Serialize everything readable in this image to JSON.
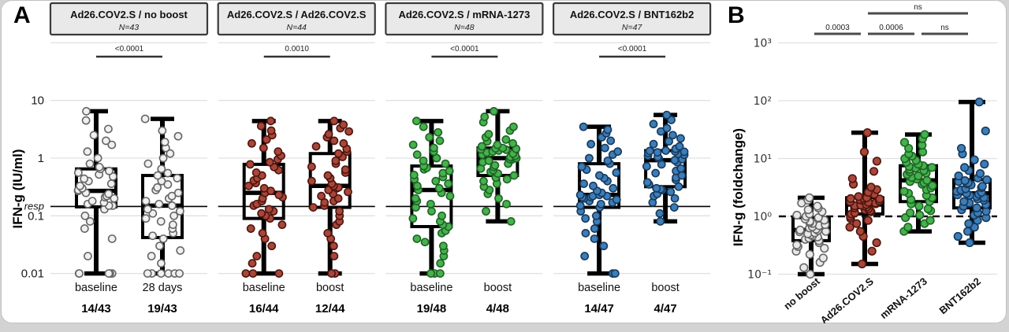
{
  "figure": {
    "panel_a_label": "A",
    "panel_b_label": "B"
  },
  "chart_data": [
    {
      "type": "boxplot-scatter",
      "panel": "A",
      "ylabel": "IFN-g (IU/ml)",
      "yscale": "log",
      "ylim": [
        0.01,
        10
      ],
      "yticks": [
        {
          "label": "10",
          "value": 10
        },
        {
          "label": "1",
          "value": 1
        },
        {
          "label": "0.1",
          "value": 0.1
        },
        {
          "label": "0.01",
          "value": 0.01
        }
      ],
      "gridline_values": [
        100,
        10,
        1,
        0.1,
        0.01
      ],
      "responder_threshold": {
        "label": "resp",
        "value": 0.145
      },
      "subpanels": [
        {
          "title": "Ad26.COV2.S / no boost",
          "n_label": "N=43",
          "p_value": "<0.0001",
          "groups": [
            {
              "label": "baseline",
              "fraction": "14/43",
              "point_fill": "#f0f0f0",
              "point_stroke": "#666666",
              "box": {
                "lo": 0.01,
                "q1": 0.143,
                "med": 0.27,
                "q3": 0.65,
                "hi": 6.5
              },
              "points": [
                0.01,
                0.01,
                0.01,
                0.01,
                0.01,
                0.02,
                0.04,
                0.06,
                0.08,
                0.1,
                0.13,
                0.15,
                0.15,
                0.16,
                0.17,
                0.18,
                0.2,
                0.21,
                0.22,
                0.24,
                0.25,
                0.27,
                0.28,
                0.3,
                0.33,
                0.36,
                0.4,
                0.44,
                0.48,
                0.52,
                0.56,
                0.6,
                0.65,
                0.7,
                0.8,
                1.0,
                1.3,
                1.7,
                2.0,
                2.5,
                3.2,
                4.5,
                6.5
              ]
            },
            {
              "label": "28 days",
              "fraction": "19/43",
              "point_fill": "#f0f0f0",
              "point_stroke": "#666666",
              "box": {
                "lo": 0.01,
                "q1": 0.042,
                "med": 0.15,
                "q3": 0.5,
                "hi": 4.8
              },
              "points": [
                0.01,
                0.01,
                0.01,
                0.01,
                0.01,
                0.01,
                0.015,
                0.02,
                0.025,
                0.03,
                0.04,
                0.045,
                0.05,
                0.06,
                0.07,
                0.08,
                0.09,
                0.1,
                0.11,
                0.12,
                0.13,
                0.15,
                0.16,
                0.18,
                0.2,
                0.22,
                0.25,
                0.28,
                0.31,
                0.35,
                0.4,
                0.45,
                0.5,
                0.55,
                0.65,
                0.8,
                1.0,
                1.2,
                1.5,
                1.9,
                2.4,
                3.0,
                4.8
              ]
            }
          ]
        },
        {
          "title": "Ad26.COV2.S / Ad26.COV2.S",
          "n_label": "N=44",
          "p_value": "0.0010",
          "groups": [
            {
              "label": "baseline",
              "fraction": "16/44",
              "point_fill": "#a8463a",
              "point_stroke": "#4e150e",
              "box": {
                "lo": 0.01,
                "q1": 0.09,
                "med": 0.25,
                "q3": 0.78,
                "hi": 4.4
              },
              "points": [
                0.01,
                0.01,
                0.01,
                0.015,
                0.02,
                0.03,
                0.04,
                0.05,
                0.06,
                0.07,
                0.09,
                0.1,
                0.11,
                0.12,
                0.13,
                0.15,
                0.16,
                0.18,
                0.2,
                0.21,
                0.23,
                0.25,
                0.27,
                0.3,
                0.33,
                0.37,
                0.41,
                0.45,
                0.5,
                0.56,
                0.62,
                0.7,
                0.78,
                0.85,
                0.95,
                1.1,
                1.3,
                1.5,
                1.8,
                2.1,
                2.5,
                3.0,
                3.6,
                4.4
              ]
            },
            {
              "label": "boost",
              "fraction": "12/44",
              "point_fill": "#a8463a",
              "point_stroke": "#4e150e",
              "box": {
                "lo": 0.01,
                "q1": 0.14,
                "med": 0.33,
                "q3": 1.2,
                "hi": 4.4
              },
              "points": [
                0.01,
                0.01,
                0.02,
                0.03,
                0.04,
                0.05,
                0.07,
                0.08,
                0.1,
                0.12,
                0.14,
                0.15,
                0.17,
                0.18,
                0.2,
                0.22,
                0.24,
                0.26,
                0.28,
                0.3,
                0.31,
                0.33,
                0.36,
                0.4,
                0.45,
                0.5,
                0.56,
                0.63,
                0.71,
                0.8,
                0.9,
                1.05,
                1.2,
                1.3,
                1.45,
                1.6,
                1.8,
                2.0,
                2.3,
                2.6,
                2.9,
                3.3,
                3.8,
                4.4
              ]
            }
          ]
        },
        {
          "title": "Ad26.COV2.S / mRNA-1273",
          "n_label": "N=48",
          "p_value": "<0.0001",
          "groups": [
            {
              "label": "baseline",
              "fraction": "19/48",
              "point_fill": "#46b14d",
              "point_stroke": "#1d6424",
              "box": {
                "lo": 0.01,
                "q1": 0.065,
                "med": 0.28,
                "q3": 0.73,
                "hi": 4.4
              },
              "points": [
                0.01,
                0.01,
                0.01,
                0.015,
                0.02,
                0.025,
                0.03,
                0.035,
                0.04,
                0.05,
                0.055,
                0.065,
                0.07,
                0.08,
                0.09,
                0.1,
                0.12,
                0.14,
                0.16,
                0.18,
                0.2,
                0.22,
                0.25,
                0.28,
                0.3,
                0.33,
                0.36,
                0.4,
                0.43,
                0.47,
                0.51,
                0.55,
                0.6,
                0.64,
                0.68,
                0.73,
                0.8,
                0.9,
                1.0,
                1.15,
                1.3,
                1.5,
                1.7,
                2.0,
                2.3,
                2.8,
                3.5,
                4.4
              ]
            },
            {
              "label": "boost",
              "fraction": "4/48",
              "point_fill": "#46b14d",
              "point_stroke": "#1d6424",
              "box": {
                "lo": 0.08,
                "q1": 0.5,
                "med": 1.0,
                "q3": 1.5,
                "hi": 6.5
              },
              "points": [
                0.08,
                0.12,
                0.16,
                0.2,
                0.24,
                0.28,
                0.32,
                0.36,
                0.4,
                0.43,
                0.46,
                0.5,
                0.54,
                0.58,
                0.62,
                0.66,
                0.7,
                0.75,
                0.8,
                0.85,
                0.9,
                0.94,
                0.97,
                1.0,
                1.05,
                1.1,
                1.15,
                1.2,
                1.25,
                1.3,
                1.35,
                1.4,
                1.42,
                1.45,
                1.48,
                1.5,
                1.6,
                1.7,
                1.8,
                1.95,
                2.1,
                2.3,
                2.6,
                3.0,
                3.5,
                4.2,
                5.2,
                6.5
              ]
            }
          ]
        },
        {
          "title": "Ad26.COV2.S / BNT162b2",
          "n_label": "N=47",
          "p_value": "<0.0001",
          "groups": [
            {
              "label": "baseline",
              "fraction": "14/47",
              "point_fill": "#3d7db8",
              "point_stroke": "#16395c",
              "box": {
                "lo": 0.01,
                "q1": 0.14,
                "med": 0.23,
                "q3": 0.8,
                "hi": 3.5
              },
              "points": [
                0.01,
                0.01,
                0.02,
                0.03,
                0.04,
                0.05,
                0.06,
                0.08,
                0.09,
                0.1,
                0.12,
                0.14,
                0.15,
                0.16,
                0.17,
                0.18,
                0.19,
                0.2,
                0.21,
                0.21,
                0.22,
                0.22,
                0.23,
                0.23,
                0.25,
                0.27,
                0.3,
                0.33,
                0.36,
                0.4,
                0.45,
                0.5,
                0.56,
                0.63,
                0.71,
                0.8,
                0.9,
                1.0,
                1.15,
                1.3,
                1.5,
                1.75,
                2.0,
                2.3,
                2.7,
                3.1,
                3.5
              ]
            },
            {
              "label": "boost",
              "fraction": "4/47",
              "point_fill": "#3d7db8",
              "point_stroke": "#16395c",
              "box": {
                "lo": 0.08,
                "q1": 0.32,
                "med": 0.92,
                "q3": 1.35,
                "hi": 5.6
              },
              "points": [
                0.08,
                0.11,
                0.14,
                0.17,
                0.2,
                0.22,
                0.24,
                0.26,
                0.28,
                0.29,
                0.3,
                0.32,
                0.35,
                0.38,
                0.42,
                0.46,
                0.5,
                0.55,
                0.6,
                0.66,
                0.72,
                0.78,
                0.85,
                0.92,
                0.96,
                1.0,
                1.05,
                1.1,
                1.14,
                1.18,
                1.22,
                1.26,
                1.29,
                1.31,
                1.33,
                1.35,
                1.45,
                1.6,
                1.75,
                1.95,
                2.2,
                2.5,
                2.9,
                3.3,
                3.9,
                4.6,
                5.6
              ]
            }
          ]
        }
      ]
    },
    {
      "type": "boxplot-scatter",
      "panel": "B",
      "ylabel": "IFN-g (foldchange)",
      "yscale": "log",
      "ylim": [
        0.1,
        1000
      ],
      "yticks": [
        {
          "label": "10³",
          "value": 1000
        },
        {
          "label": "10²",
          "value": 100
        },
        {
          "label": "10¹",
          "value": 10
        },
        {
          "label": "10⁰",
          "value": 1
        },
        {
          "label": "10⁻¹",
          "value": 0.1
        }
      ],
      "baseline_line": {
        "value": 1,
        "style": "dashed"
      },
      "comparisons": [
        {
          "label": "ns",
          "from": 1,
          "to": 3,
          "row": 0
        },
        {
          "label": "0.0003",
          "from": 0,
          "to": 1,
          "row": 1
        },
        {
          "label": "0.0006",
          "from": 1,
          "to": 2,
          "row": 1
        },
        {
          "label": "ns",
          "from": 2,
          "to": 3,
          "row": 1
        }
      ],
      "groups": [
        {
          "label": "no boost",
          "point_fill": "#e9e9e9",
          "point_stroke": "#666666",
          "box": {
            "lo": 0.1,
            "q1": 0.38,
            "med": 0.58,
            "q3": 0.95,
            "hi": 2.1
          },
          "points": [
            0.1,
            0.13,
            0.16,
            0.19,
            0.22,
            0.25,
            0.28,
            0.3,
            0.32,
            0.35,
            0.38,
            0.4,
            0.42,
            0.44,
            0.46,
            0.48,
            0.5,
            0.52,
            0.54,
            0.55,
            0.57,
            0.58,
            0.6,
            0.63,
            0.66,
            0.69,
            0.72,
            0.75,
            0.78,
            0.82,
            0.86,
            0.9,
            0.95,
            1.0,
            1.05,
            1.1,
            1.2,
            1.3,
            1.4,
            1.5,
            1.7,
            1.9,
            2.1
          ]
        },
        {
          "label": "Ad26.COV2.S",
          "point_fill": "#a8463a",
          "point_stroke": "#4e150e",
          "box": {
            "lo": 0.15,
            "q1": 1.1,
            "med": 1.6,
            "q3": 2.1,
            "hi": 28
          },
          "points": [
            0.15,
            0.25,
            0.35,
            0.45,
            0.55,
            0.65,
            0.75,
            0.85,
            0.92,
            1.0,
            1.1,
            1.15,
            1.2,
            1.25,
            1.3,
            1.35,
            1.4,
            1.45,
            1.5,
            1.52,
            1.56,
            1.6,
            1.65,
            1.7,
            1.75,
            1.8,
            1.85,
            1.9,
            1.95,
            2.0,
            2.03,
            2.06,
            2.1,
            2.2,
            2.4,
            2.6,
            2.9,
            3.2,
            3.6,
            4.5,
            6.0,
            9.0,
            13,
            28
          ]
        },
        {
          "label": "mRNA-1273",
          "point_fill": "#46b14d",
          "point_stroke": "#1d6424",
          "box": {
            "lo": 0.55,
            "q1": 1.8,
            "med": 4.2,
            "q3": 7.5,
            "hi": 26
          },
          "points": [
            0.55,
            0.65,
            0.75,
            0.85,
            0.95,
            1.05,
            1.15,
            1.25,
            1.35,
            1.5,
            1.65,
            1.8,
            1.95,
            2.1,
            2.3,
            2.5,
            2.7,
            2.9,
            3.1,
            3.4,
            3.6,
            3.8,
            4.0,
            4.2,
            4.4,
            4.7,
            5.0,
            5.3,
            5.6,
            5.9,
            6.2,
            6.5,
            6.8,
            7.0,
            7.3,
            7.5,
            8.0,
            8.6,
            9.3,
            10,
            11,
            12,
            13,
            15,
            17,
            19,
            22,
            26
          ]
        },
        {
          "label": "BNT162b2",
          "point_fill": "#3d7db8",
          "point_stroke": "#16395c",
          "box": {
            "lo": 0.35,
            "q1": 1.4,
            "med": 2.5,
            "q3": 4.3,
            "hi": 95
          },
          "points": [
            0.35,
            0.45,
            0.55,
            0.65,
            0.75,
            0.85,
            0.95,
            1.05,
            1.15,
            1.22,
            1.3,
            1.4,
            1.5,
            1.6,
            1.7,
            1.8,
            1.9,
            2.0,
            2.1,
            2.2,
            2.3,
            2.35,
            2.42,
            2.5,
            2.6,
            2.7,
            2.85,
            3.0,
            3.15,
            3.3,
            3.5,
            3.65,
            3.8,
            4.0,
            4.15,
            4.3,
            4.6,
            5.0,
            5.5,
            6.2,
            7.0,
            8.0,
            9.5,
            12,
            15,
            30,
            95
          ]
        }
      ]
    }
  ]
}
